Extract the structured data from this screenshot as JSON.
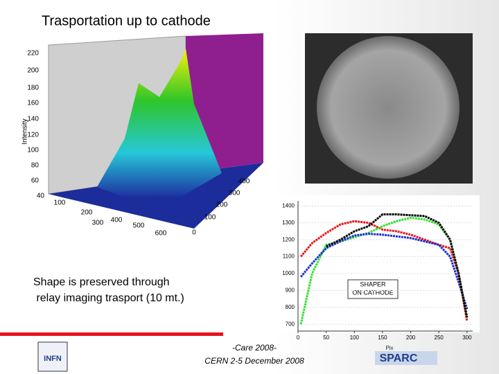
{
  "title": "Trasportation up to cathode",
  "caption": [
    "Shape is preserved through",
    " relay imaging trasport (10 mt.)"
  ],
  "footer": [
    "-Care 2008-",
    "CERN 2-5 December 2008"
  ],
  "logos": {
    "left": "INFN",
    "right_small": "Pix",
    "right": "SPARC"
  },
  "surface_plot": {
    "z_label": "Intensity",
    "z_ticks": [
      "220",
      "200",
      "180",
      "160",
      "140",
      "120",
      "100",
      "80",
      "60",
      "40"
    ],
    "x_ticks": [
      "100",
      "200",
      "300",
      "400",
      "500",
      "600"
    ],
    "y_ticks": [
      "400",
      "300",
      "200",
      "100",
      "0"
    ]
  },
  "chart_data": {
    "type": "line",
    "annotation": [
      "SHAPER",
      "ON CATHODE"
    ],
    "x": [
      5,
      25,
      50,
      75,
      100,
      125,
      150,
      175,
      200,
      225,
      250,
      270,
      285,
      300
    ],
    "series": [
      {
        "color": "#e8141c",
        "values": [
          1100,
          1180,
          1240,
          1290,
          1310,
          1300,
          1260,
          1250,
          1230,
          1200,
          1170,
          1150,
          1000,
          720
        ]
      },
      {
        "color": "#30e030",
        "values": [
          700,
          1000,
          1170,
          1190,
          1215,
          1240,
          1280,
          1310,
          1330,
          1320,
          1290,
          1200,
          1000,
          740
        ]
      },
      {
        "color": "#1a2fd0",
        "values": [
          980,
          1060,
          1150,
          1190,
          1225,
          1235,
          1230,
          1220,
          1210,
          1190,
          1170,
          1100,
          950,
          790
        ]
      },
      {
        "color": "#000000",
        "values": [
          null,
          null,
          1160,
          1200,
          1250,
          1280,
          1350,
          1350,
          1345,
          1340,
          1300,
          1200,
          1000,
          740
        ]
      }
    ],
    "xlim": [
      0,
      310
    ],
    "ylim": [
      660,
      1430
    ],
    "xticks": [
      0,
      50,
      100,
      150,
      200,
      250,
      300
    ],
    "yticks": [
      700,
      800,
      900,
      1000,
      1100,
      1200,
      1300,
      1400
    ],
    "grid": true
  }
}
